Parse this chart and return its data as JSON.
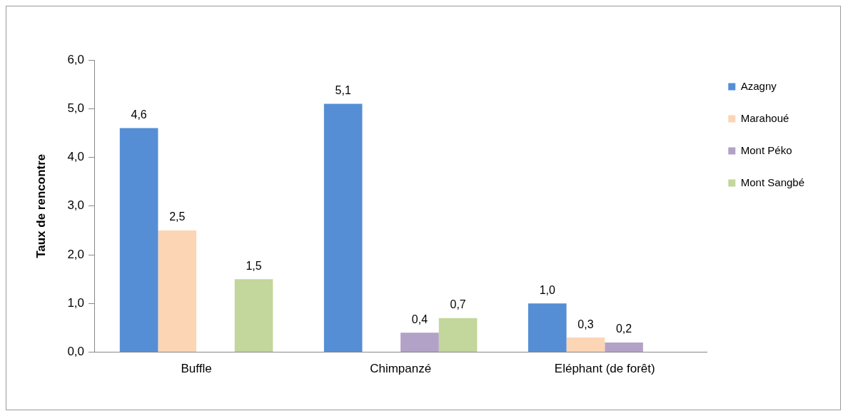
{
  "chart_data": {
    "type": "bar",
    "ylabel": "Taux de rencontre",
    "categories": [
      "Buffle",
      "Chimpanzé",
      "Eléphant (de forêt)"
    ],
    "series": [
      {
        "name": "Azagny",
        "color": "#558ed5",
        "values": [
          4.6,
          5.1,
          1.0
        ],
        "value_labels": [
          "4,6",
          "5,1",
          "1,0"
        ]
      },
      {
        "name": "Marahoué",
        "color": "#fcd5b5",
        "values": [
          2.5,
          null,
          0.3
        ],
        "value_labels": [
          "2,5",
          null,
          "0,3"
        ]
      },
      {
        "name": "Mont Péko",
        "color": "#b3a2c7",
        "values": [
          null,
          0.4,
          0.2
        ],
        "value_labels": [
          null,
          "0,4",
          "0,2"
        ]
      },
      {
        "name": "Mont Sangbé",
        "color": "#c3d69b",
        "values": [
          1.5,
          0.7,
          null
        ],
        "value_labels": [
          "1,5",
          "0,7",
          null
        ]
      }
    ],
    "ylim": [
      0,
      6
    ],
    "yticks": [
      {
        "value": 0,
        "label": "0,0"
      },
      {
        "value": 1,
        "label": "1,0"
      },
      {
        "value": 2,
        "label": "2,0"
      },
      {
        "value": 3,
        "label": "3,0"
      },
      {
        "value": 4,
        "label": "4,0"
      },
      {
        "value": 5,
        "label": "5,0"
      },
      {
        "value": 6,
        "label": "6,0"
      }
    ],
    "grid": false,
    "legend": "top right"
  }
}
